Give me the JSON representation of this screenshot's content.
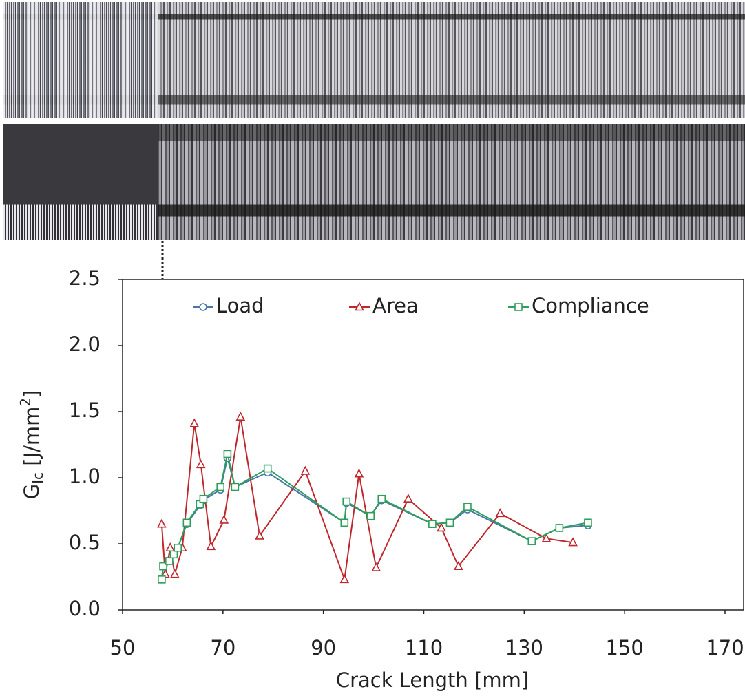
{
  "chart_data": {
    "type": "line",
    "x_label": "Crack Length [mm]",
    "y_label_parts": [
      "G",
      "Ic",
      " [J/mm",
      "2",
      "]"
    ],
    "xlim": [
      50,
      170
    ],
    "xticks": [
      50,
      70,
      90,
      110,
      130,
      150,
      170
    ],
    "ylim": [
      0,
      2.5
    ],
    "yticks": [
      {
        "value": 0,
        "label": "0.0"
      },
      0.5,
      {
        "value": 1,
        "label": "1.0"
      },
      1.5,
      {
        "value": 2,
        "label": "2.0"
      },
      2.5
    ],
    "grid": false,
    "legend": "top",
    "series": [
      {
        "name": "Load",
        "color": "#4a76a8",
        "marker": "circle",
        "x": [
          57.8,
          58.1,
          59.3,
          60.2,
          61.0,
          62.8,
          65.4,
          66.1,
          69.5,
          70.9,
          72.4,
          78.9,
          94.2,
          94.6,
          99.4,
          101.6,
          111.7,
          115.2,
          118.7,
          131.5,
          137.0,
          142.7
        ],
        "values": [
          0.23,
          0.33,
          0.37,
          0.42,
          0.47,
          0.65,
          0.79,
          0.83,
          0.91,
          1.15,
          0.93,
          1.04,
          0.66,
          0.81,
          0.71,
          0.83,
          0.65,
          0.66,
          0.76,
          0.52,
          0.62,
          0.64
        ]
      },
      {
        "name": "Area",
        "color": "#c0272d",
        "marker": "triangle",
        "x": [
          57.8,
          58.5,
          59.5,
          60.4,
          61.9,
          64.3,
          65.6,
          67.6,
          70.2,
          73.5,
          77.3,
          86.4,
          94.2,
          97.1,
          100.5,
          106.9,
          113.5,
          116.9,
          125.2,
          134.4,
          139.7
        ],
        "values": [
          0.65,
          0.27,
          0.47,
          0.27,
          0.47,
          1.41,
          1.1,
          0.48,
          0.68,
          1.46,
          0.56,
          1.05,
          0.23,
          1.03,
          0.32,
          0.84,
          0.62,
          0.33,
          0.73,
          0.54,
          0.51
        ]
      },
      {
        "name": "Compliance",
        "color": "#2ca05a",
        "marker": "square",
        "x": [
          57.8,
          58.1,
          59.3,
          60.2,
          61.0,
          62.8,
          65.4,
          66.1,
          69.5,
          70.9,
          72.4,
          78.9,
          94.2,
          94.6,
          99.4,
          101.6,
          111.7,
          115.2,
          118.7,
          131.5,
          137.0,
          142.7
        ],
        "values": [
          0.23,
          0.33,
          0.37,
          0.42,
          0.47,
          0.66,
          0.8,
          0.84,
          0.93,
          1.18,
          0.93,
          1.07,
          0.66,
          0.82,
          0.71,
          0.84,
          0.65,
          0.66,
          0.78,
          0.52,
          0.62,
          0.66
        ]
      }
    ]
  }
}
